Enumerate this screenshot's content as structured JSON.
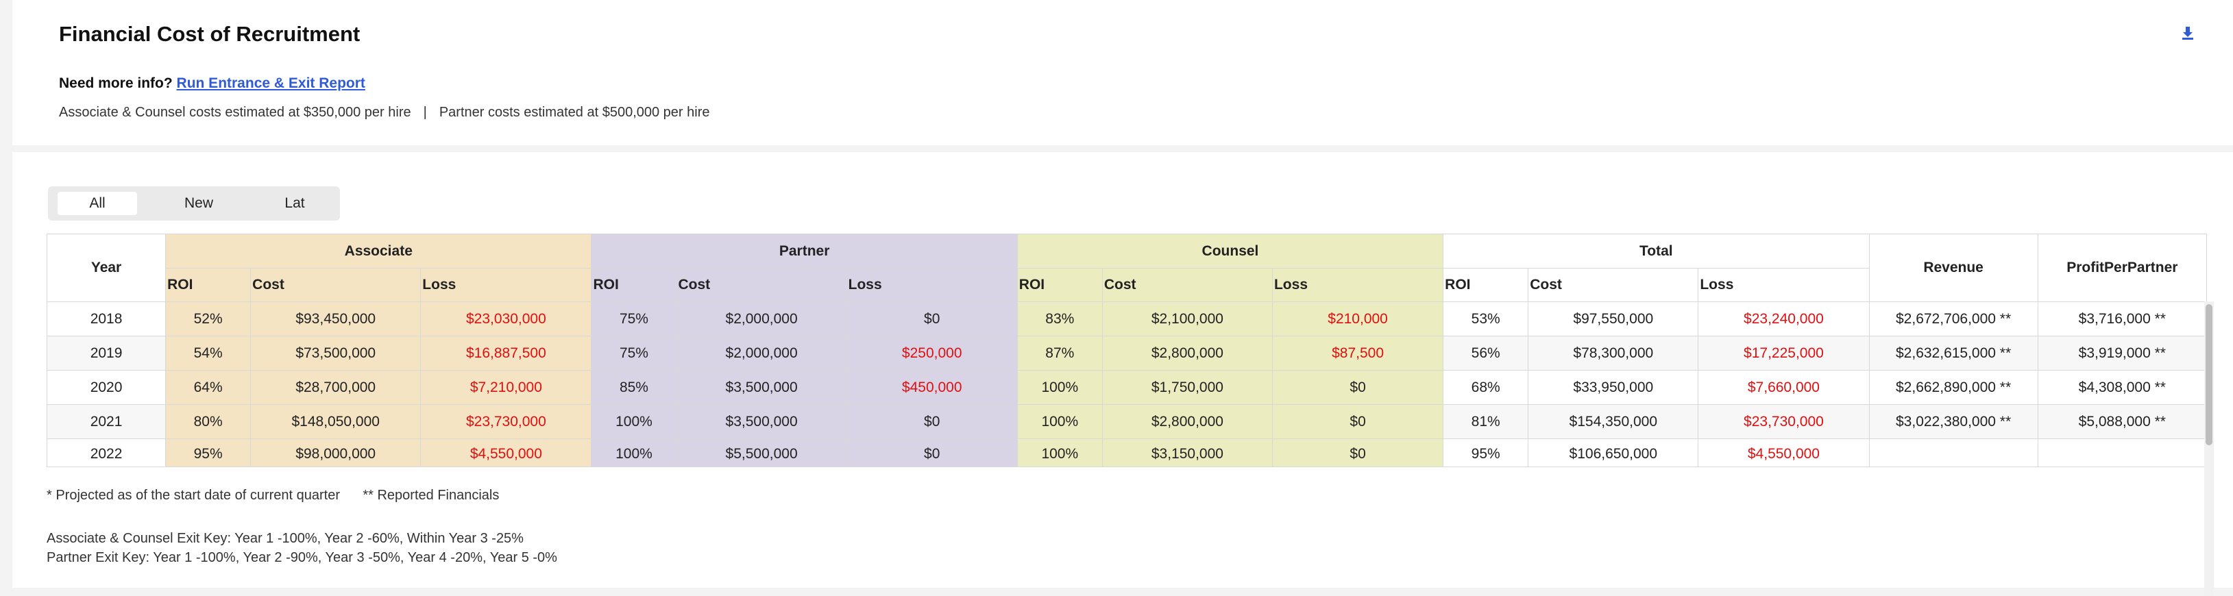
{
  "header": {
    "title": "Financial Cost of Recruitment",
    "more_info_label": "Need more info?",
    "more_info_link": "Run Entrance & Exit Report",
    "estimate_associate": "Associate & Counsel costs estimated at $350,000 per hire",
    "estimate_separator": "|",
    "estimate_partner": "Partner costs estimated at $500,000 per hire",
    "download_icon": "download-icon"
  },
  "filter": {
    "options": [
      "All",
      "New",
      "Lat"
    ],
    "selected": "All"
  },
  "table": {
    "year_header": "Year",
    "groups": [
      "Associate",
      "Partner",
      "Counsel",
      "Total"
    ],
    "revenue_header": "Revenue",
    "ppp_header": "ProfitPerPartner",
    "sub_headers": [
      "ROI",
      "Cost",
      "Loss"
    ],
    "colors": {
      "associate": "#f4e4c4",
      "partner": "#d8d4e6",
      "counsel": "#ebecbf",
      "loss_red": "#e01010"
    },
    "rows": [
      {
        "year": "2018",
        "a_roi": "52%",
        "a_cost": "$93,450,000",
        "a_loss": "$23,030,000",
        "p_roi": "75%",
        "p_cost": "$2,000,000",
        "p_loss": "$0",
        "c_roi": "83%",
        "c_cost": "$2,100,000",
        "c_loss": "$210,000",
        "t_roi": "53%",
        "t_cost": "$97,550,000",
        "t_loss": "$23,240,000",
        "revenue": "$2,672,706,000 **",
        "ppp": "$3,716,000 **"
      },
      {
        "year": "2019",
        "a_roi": "54%",
        "a_cost": "$73,500,000",
        "a_loss": "$16,887,500",
        "p_roi": "75%",
        "p_cost": "$2,000,000",
        "p_loss": "$250,000",
        "c_roi": "87%",
        "c_cost": "$2,800,000",
        "c_loss": "$87,500",
        "t_roi": "56%",
        "t_cost": "$78,300,000",
        "t_loss": "$17,225,000",
        "revenue": "$2,632,615,000 **",
        "ppp": "$3,919,000 **"
      },
      {
        "year": "2020",
        "a_roi": "64%",
        "a_cost": "$28,700,000",
        "a_loss": "$7,210,000",
        "p_roi": "85%",
        "p_cost": "$3,500,000",
        "p_loss": "$450,000",
        "c_roi": "100%",
        "c_cost": "$1,750,000",
        "c_loss": "$0",
        "t_roi": "68%",
        "t_cost": "$33,950,000",
        "t_loss": "$7,660,000",
        "revenue": "$2,662,890,000 **",
        "ppp": "$4,308,000 **"
      },
      {
        "year": "2021",
        "a_roi": "80%",
        "a_cost": "$148,050,000",
        "a_loss": "$23,730,000",
        "p_roi": "100%",
        "p_cost": "$3,500,000",
        "p_loss": "$0",
        "c_roi": "100%",
        "c_cost": "$2,800,000",
        "c_loss": "$0",
        "t_roi": "81%",
        "t_cost": "$154,350,000",
        "t_loss": "$23,730,000",
        "revenue": "$3,022,380,000 **",
        "ppp": "$5,088,000 **"
      },
      {
        "year": "2022",
        "a_roi": "95%",
        "a_cost": "$98,000,000",
        "a_loss": "$4,550,000",
        "p_roi": "100%",
        "p_cost": "$5,500,000",
        "p_loss": "$0",
        "c_roi": "100%",
        "c_cost": "$3,150,000",
        "c_loss": "$0",
        "t_roi": "95%",
        "t_cost": "$106,650,000",
        "t_loss": "$4,550,000",
        "revenue": "",
        "ppp": ""
      }
    ]
  },
  "footnotes": {
    "projected": "* Projected as of the start date of current quarter",
    "reported": "** Reported Financials",
    "associate_key": "Associate & Counsel Exit Key: Year 1 -100%, Year 2 -60%, Within Year 3 -25%",
    "partner_key": "Partner Exit Key: Year 1 -100%, Year 2 -90%, Year 3 -50%, Year 4 -20%, Year 5 -0%"
  }
}
